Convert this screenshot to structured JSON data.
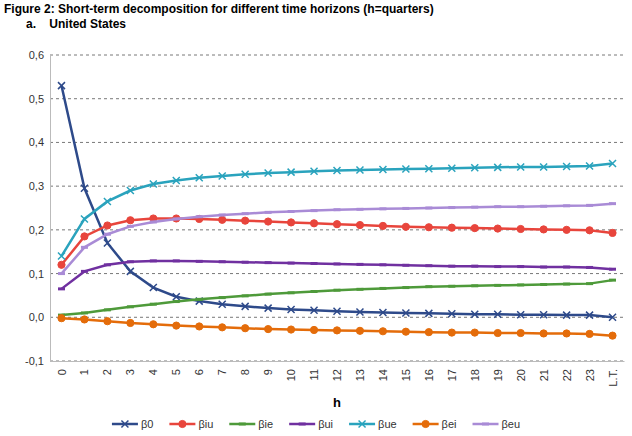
{
  "chart_data": {
    "type": "line",
    "title": "Figure 2: Short-term decomposition for different time horizons (h=quarters)",
    "subtitle": "a.    United States",
    "x_label": "h",
    "categories": [
      "0",
      "1",
      "2",
      "3",
      "4",
      "5",
      "6",
      "7",
      "8",
      "9",
      "10",
      "11",
      "12",
      "13",
      "14",
      "15",
      "16",
      "17",
      "18",
      "19",
      "20",
      "21",
      "22",
      "23",
      "L.T."
    ],
    "ylim": [
      -0.1,
      0.6
    ],
    "yticks": [
      {
        "value": -0.1,
        "label": "-0,1"
      },
      {
        "value": 0,
        "label": "0,0"
      },
      {
        "value": 0.1,
        "label": "0,1"
      },
      {
        "value": 0.2,
        "label": "0,2"
      },
      {
        "value": 0.3,
        "label": "0,3"
      },
      {
        "value": 0.4,
        "label": "0,4"
      },
      {
        "value": 0.5,
        "label": "0,5"
      },
      {
        "value": 0.6,
        "label": "0,6"
      }
    ],
    "grid": true,
    "legend": "bottom",
    "series": [
      {
        "name": "β0",
        "color": "#2e4a8a",
        "marker": "x",
        "values": [
          0.53,
          0.295,
          0.17,
          0.105,
          0.068,
          0.047,
          0.037,
          0.03,
          0.025,
          0.021,
          0.018,
          0.016,
          0.014,
          0.012,
          0.011,
          0.01,
          0.009,
          0.008,
          0.007,
          0.007,
          0.006,
          0.006,
          0.005,
          0.005,
          0.0
        ]
      },
      {
        "name": "βiu",
        "color": "#e8453c",
        "marker": "circle",
        "values": [
          0.12,
          0.185,
          0.21,
          0.222,
          0.226,
          0.226,
          0.225,
          0.223,
          0.221,
          0.219,
          0.217,
          0.215,
          0.213,
          0.211,
          0.209,
          0.207,
          0.206,
          0.205,
          0.204,
          0.203,
          0.202,
          0.201,
          0.2,
          0.199,
          0.193
        ]
      },
      {
        "name": "βie",
        "color": "#4e9a3a",
        "marker": "dash",
        "values": [
          0.005,
          0.01,
          0.017,
          0.024,
          0.03,
          0.036,
          0.041,
          0.045,
          0.049,
          0.053,
          0.056,
          0.059,
          0.062,
          0.064,
          0.066,
          0.068,
          0.07,
          0.071,
          0.072,
          0.073,
          0.074,
          0.075,
          0.076,
          0.077,
          0.085
        ]
      },
      {
        "name": "βui",
        "color": "#7030a0",
        "marker": "dash",
        "values": [
          0.065,
          0.105,
          0.12,
          0.127,
          0.129,
          0.129,
          0.128,
          0.127,
          0.126,
          0.125,
          0.124,
          0.123,
          0.122,
          0.121,
          0.12,
          0.119,
          0.118,
          0.117,
          0.117,
          0.116,
          0.116,
          0.115,
          0.115,
          0.114,
          0.11
        ]
      },
      {
        "name": "βue",
        "color": "#2aa3bd",
        "marker": "x",
        "values": [
          0.14,
          0.225,
          0.265,
          0.29,
          0.305,
          0.313,
          0.319,
          0.323,
          0.327,
          0.33,
          0.332,
          0.334,
          0.336,
          0.337,
          0.338,
          0.339,
          0.34,
          0.341,
          0.342,
          0.343,
          0.344,
          0.344,
          0.345,
          0.346,
          0.352
        ]
      },
      {
        "name": "βei",
        "color": "#e46c0a",
        "marker": "circle",
        "values": [
          -0.002,
          -0.005,
          -0.009,
          -0.013,
          -0.016,
          -0.019,
          -0.021,
          -0.023,
          -0.025,
          -0.027,
          -0.028,
          -0.029,
          -0.03,
          -0.031,
          -0.032,
          -0.033,
          -0.034,
          -0.035,
          -0.035,
          -0.036,
          -0.036,
          -0.037,
          -0.037,
          -0.038,
          -0.042
        ]
      },
      {
        "name": "βeu",
        "color": "#a98bd6",
        "marker": "dash",
        "values": [
          0.1,
          0.16,
          0.19,
          0.208,
          0.218,
          0.225,
          0.23,
          0.234,
          0.237,
          0.24,
          0.242,
          0.244,
          0.246,
          0.247,
          0.248,
          0.249,
          0.25,
          0.251,
          0.252,
          0.253,
          0.253,
          0.254,
          0.255,
          0.256,
          0.26
        ]
      }
    ]
  }
}
